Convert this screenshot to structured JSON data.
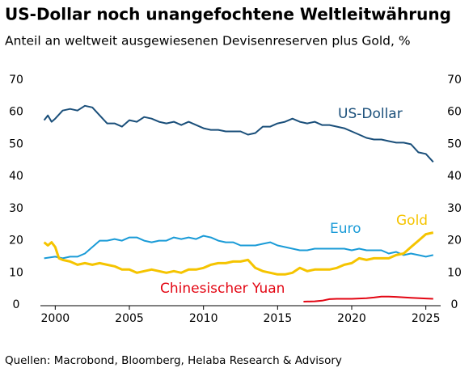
{
  "chart_data": {
    "type": "line",
    "title": "US-Dollar noch unangefochtene Weltleitwährung",
    "subtitle": "Anteil an weltweit ausgewiesenen Devisenreserven plus Gold, %",
    "source": "Quellen: Macrobond, Bloomberg, Helaba Research & Advisory",
    "xlim": [
      1999,
      2026
    ],
    "xticks": [
      2000,
      2005,
      2010,
      2015,
      2020,
      2025
    ],
    "ylim": [
      0,
      70
    ],
    "yticks": [
      0,
      10,
      20,
      30,
      40,
      50,
      60,
      70
    ],
    "y2lim": [
      0,
      70
    ],
    "y2ticks": [
      0,
      10,
      20,
      30,
      40,
      50,
      60,
      70
    ],
    "series": [
      {
        "name": "US-Dollar",
        "color": "#1a4f7a",
        "x": [
          1999.25,
          1999.5,
          1999.75,
          2000,
          2000.5,
          2001,
          2001.5,
          2002,
          2002.5,
          2003,
          2003.5,
          2004,
          2004.5,
          2005,
          2005.5,
          2006,
          2006.5,
          2007,
          2007.5,
          2008,
          2008.5,
          2009,
          2009.5,
          2010,
          2010.5,
          2011,
          2011.5,
          2012,
          2012.5,
          2013,
          2013.5,
          2014,
          2014.5,
          2015,
          2015.5,
          2016,
          2016.5,
          2017,
          2017.5,
          2018,
          2018.5,
          2019,
          2019.5,
          2020,
          2020.5,
          2021,
          2021.5,
          2022,
          2022.5,
          2023,
          2023.5,
          2024,
          2024.5,
          2025,
          2025.5
        ],
        "values": [
          57.5,
          59,
          57,
          58,
          60.5,
          61,
          60.5,
          62,
          61.5,
          59,
          56.5,
          56.5,
          55.5,
          57.5,
          57,
          58.5,
          58,
          57,
          56.5,
          57,
          56,
          57,
          56,
          55,
          54.5,
          54.5,
          54,
          54,
          54,
          53,
          53.5,
          55.5,
          55.5,
          56.5,
          57,
          58,
          57,
          56.5,
          57,
          56,
          56,
          55.5,
          55,
          54,
          53,
          52,
          51.5,
          51.5,
          51,
          50.5,
          50.5,
          50,
          47.5,
          47,
          44.5
        ]
      },
      {
        "name": "Euro",
        "color": "#1a9bd7",
        "x": [
          1999.25,
          2000,
          2000.5,
          2001,
          2001.5,
          2002,
          2002.5,
          2003,
          2003.5,
          2004,
          2004.5,
          2005,
          2005.5,
          2006,
          2006.5,
          2007,
          2007.5,
          2008,
          2008.5,
          2009,
          2009.5,
          2010,
          2010.5,
          2011,
          2011.5,
          2012,
          2012.5,
          2013,
          2013.5,
          2014,
          2014.5,
          2015,
          2015.5,
          2016,
          2016.5,
          2017,
          2017.5,
          2018,
          2018.5,
          2019,
          2019.5,
          2020,
          2020.5,
          2021,
          2021.5,
          2022,
          2022.5,
          2023,
          2023.5,
          2024,
          2024.5,
          2025,
          2025.5
        ],
        "values": [
          14.5,
          15,
          14.5,
          15,
          15,
          16,
          18,
          20,
          20,
          20.5,
          20,
          21,
          21,
          20,
          19.5,
          20,
          20,
          21,
          20.5,
          21,
          20.5,
          21.5,
          21,
          20,
          19.5,
          19.5,
          18.5,
          18.5,
          18.5,
          19,
          19.5,
          18.5,
          18,
          17.5,
          17,
          17,
          17.5,
          17.5,
          17.5,
          17.5,
          17.5,
          17,
          17.5,
          17,
          17,
          17,
          16,
          16.5,
          15.5,
          16,
          15.5,
          15,
          15.5
        ]
      },
      {
        "name": "Gold",
        "color": "#f5c400",
        "x": [
          1999.25,
          1999.5,
          1999.75,
          2000,
          2000.25,
          2000.5,
          2001,
          2001.5,
          2002,
          2002.5,
          2003,
          2003.5,
          2004,
          2004.5,
          2005,
          2005.5,
          2006,
          2006.5,
          2007,
          2007.5,
          2008,
          2008.5,
          2009,
          2009.5,
          2010,
          2010.5,
          2011,
          2011.5,
          2012,
          2012.5,
          2013,
          2013.5,
          2014,
          2014.5,
          2015,
          2015.5,
          2016,
          2016.5,
          2017,
          2017.5,
          2018,
          2018.5,
          2019,
          2019.5,
          2020,
          2020.5,
          2021,
          2021.5,
          2022,
          2022.5,
          2023,
          2023.5,
          2024,
          2024.5,
          2025,
          2025.5
        ],
        "values": [
          19.5,
          18.5,
          19.5,
          18,
          14.5,
          14,
          13.5,
          12.5,
          13,
          12.5,
          13,
          12.5,
          12,
          11,
          11,
          10,
          10.5,
          11,
          10.5,
          10,
          10.5,
          10,
          11,
          11,
          11.5,
          12.5,
          13,
          13,
          13.5,
          13.5,
          14,
          11.5,
          10.5,
          10,
          9.5,
          9.5,
          10,
          11.5,
          10.5,
          11,
          11,
          11,
          11.5,
          12.5,
          13,
          14.5,
          14,
          14.5,
          14.5,
          14.5,
          15.5,
          16,
          18,
          20,
          22,
          22.5
        ]
      },
      {
        "name": "Chinesischer Yuan",
        "color": "#e30613",
        "x": [
          2016.75,
          2017.5,
          2018,
          2018.5,
          2019,
          2020,
          2021,
          2021.5,
          2022,
          2022.5,
          2023,
          2024,
          2025,
          2025.5
        ],
        "values": [
          1.0,
          1.1,
          1.3,
          1.8,
          1.9,
          1.9,
          2.1,
          2.3,
          2.6,
          2.6,
          2.5,
          2.2,
          2.0,
          1.9
        ]
      }
    ]
  }
}
